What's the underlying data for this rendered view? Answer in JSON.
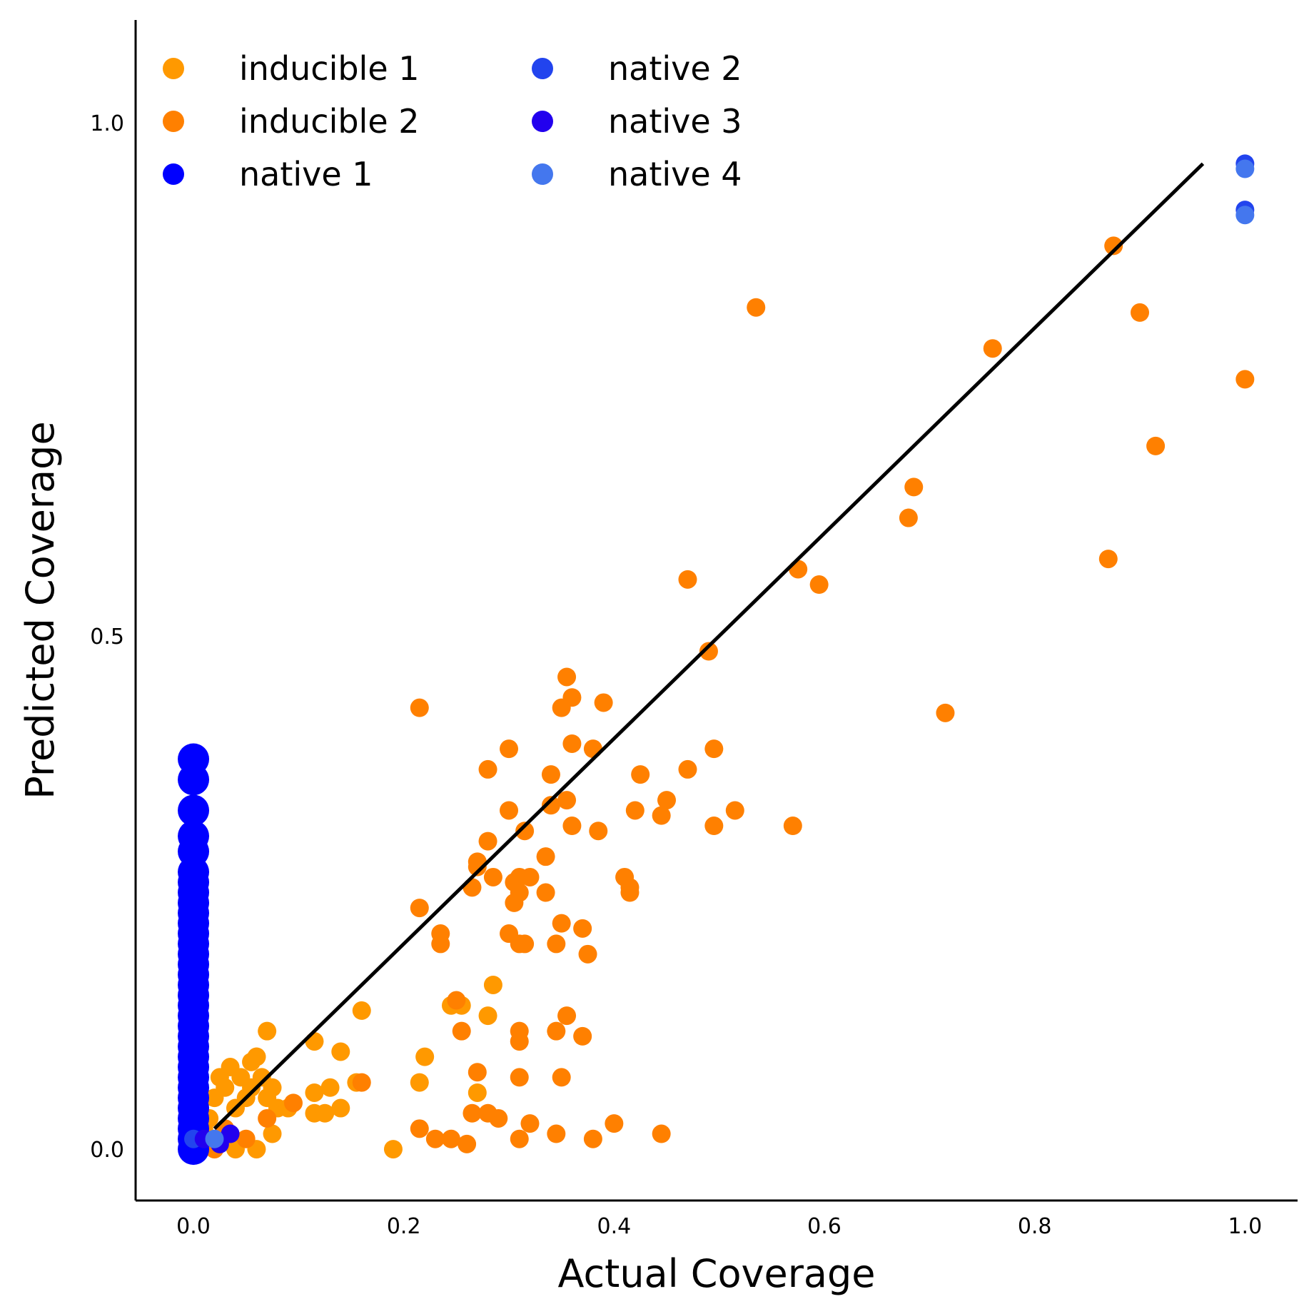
{
  "chart_data": {
    "type": "scatter",
    "xlabel": "Actual Coverage",
    "ylabel": "Predicted Coverage",
    "xlim": [
      -0.055,
      1.05
    ],
    "ylim": [
      -0.05,
      1.1
    ],
    "xticks": [
      0.0,
      0.2,
      0.4,
      0.6,
      0.8,
      1.0
    ],
    "xtick_labels": [
      "0.0",
      "0.2",
      "0.4",
      "0.6",
      "0.8",
      "1.0"
    ],
    "yticks": [
      0.0,
      0.5,
      1.0
    ],
    "ytick_labels": [
      "0.0",
      "0.5",
      "1.0"
    ],
    "grid": false,
    "legend": {
      "position": "top-left",
      "columns": 2
    },
    "fit_line": {
      "color": "#000000",
      "x": [
        0.02,
        0.96
      ],
      "y": [
        0.02,
        0.96
      ]
    },
    "series": [
      {
        "name": "inducible 1",
        "color": "#ff9900",
        "points": [
          [
            0.0,
            0.0
          ],
          [
            0.01,
            0.02
          ],
          [
            0.015,
            0.03
          ],
          [
            0.02,
            0.05
          ],
          [
            0.025,
            0.07
          ],
          [
            0.03,
            0.06
          ],
          [
            0.035,
            0.08
          ],
          [
            0.04,
            0.04
          ],
          [
            0.045,
            0.07
          ],
          [
            0.05,
            0.05
          ],
          [
            0.055,
            0.06
          ],
          [
            0.06,
            0.09
          ],
          [
            0.065,
            0.07
          ],
          [
            0.07,
            0.05
          ],
          [
            0.075,
            0.06
          ],
          [
            0.04,
            0.0
          ],
          [
            0.06,
            0.0
          ],
          [
            0.075,
            0.015
          ],
          [
            0.08,
            0.04
          ],
          [
            0.09,
            0.04
          ],
          [
            0.115,
            0.035
          ],
          [
            0.115,
            0.055
          ],
          [
            0.125,
            0.035
          ],
          [
            0.13,
            0.06
          ],
          [
            0.14,
            0.04
          ],
          [
            0.155,
            0.065
          ],
          [
            0.115,
            0.105
          ],
          [
            0.14,
            0.095
          ],
          [
            0.07,
            0.115
          ],
          [
            0.06,
            0.09
          ],
          [
            0.055,
            0.085
          ],
          [
            0.16,
            0.135
          ],
          [
            0.19,
            0.0
          ],
          [
            0.215,
            0.065
          ],
          [
            0.22,
            0.09
          ],
          [
            0.28,
            0.13
          ],
          [
            0.285,
            0.16
          ],
          [
            0.27,
            0.055
          ],
          [
            0.255,
            0.14
          ],
          [
            0.245,
            0.14
          ]
        ]
      },
      {
        "name": "inducible 2",
        "color": "#ff8000",
        "points": [
          [
            0.02,
            0.0
          ],
          [
            0.03,
            0.02
          ],
          [
            0.05,
            0.01
          ],
          [
            0.07,
            0.03
          ],
          [
            0.215,
            0.43
          ],
          [
            0.215,
            0.235
          ],
          [
            0.235,
            0.21
          ],
          [
            0.235,
            0.2
          ],
          [
            0.25,
            0.145
          ],
          [
            0.255,
            0.115
          ],
          [
            0.265,
            0.255
          ],
          [
            0.27,
            0.275
          ],
          [
            0.27,
            0.28
          ],
          [
            0.28,
            0.37
          ],
          [
            0.28,
            0.3
          ],
          [
            0.285,
            0.265
          ],
          [
            0.3,
            0.21
          ],
          [
            0.3,
            0.39
          ],
          [
            0.3,
            0.33
          ],
          [
            0.305,
            0.26
          ],
          [
            0.305,
            0.24
          ],
          [
            0.31,
            0.2
          ],
          [
            0.31,
            0.265
          ],
          [
            0.31,
            0.25
          ],
          [
            0.315,
            0.31
          ],
          [
            0.315,
            0.2
          ],
          [
            0.32,
            0.265
          ],
          [
            0.335,
            0.285
          ],
          [
            0.335,
            0.25
          ],
          [
            0.34,
            0.365
          ],
          [
            0.34,
            0.335
          ],
          [
            0.345,
            0.2
          ],
          [
            0.345,
            0.115
          ],
          [
            0.35,
            0.43
          ],
          [
            0.35,
            0.22
          ],
          [
            0.355,
            0.46
          ],
          [
            0.355,
            0.34
          ],
          [
            0.355,
            0.13
          ],
          [
            0.36,
            0.44
          ],
          [
            0.36,
            0.395
          ],
          [
            0.36,
            0.315
          ],
          [
            0.37,
            0.215
          ],
          [
            0.37,
            0.11
          ],
          [
            0.375,
            0.19
          ],
          [
            0.38,
            0.39
          ],
          [
            0.385,
            0.31
          ],
          [
            0.39,
            0.435
          ],
          [
            0.41,
            0.265
          ],
          [
            0.415,
            0.255
          ],
          [
            0.415,
            0.25
          ],
          [
            0.42,
            0.33
          ],
          [
            0.425,
            0.365
          ],
          [
            0.445,
            0.325
          ],
          [
            0.45,
            0.34
          ],
          [
            0.47,
            0.37
          ],
          [
            0.47,
            0.555
          ],
          [
            0.49,
            0.485
          ],
          [
            0.495,
            0.39
          ],
          [
            0.495,
            0.315
          ],
          [
            0.515,
            0.33
          ],
          [
            0.535,
            0.82
          ],
          [
            0.57,
            0.315
          ],
          [
            0.575,
            0.565
          ],
          [
            0.595,
            0.55
          ],
          [
            0.68,
            0.615
          ],
          [
            0.685,
            0.645
          ],
          [
            0.715,
            0.425
          ],
          [
            0.76,
            0.78
          ],
          [
            0.87,
            0.575
          ],
          [
            0.875,
            0.88
          ],
          [
            0.9,
            0.815
          ],
          [
            0.915,
            0.685
          ],
          [
            1.0,
            0.75
          ],
          [
            0.31,
            0.115
          ],
          [
            0.31,
            0.105
          ],
          [
            0.31,
            0.07
          ],
          [
            0.35,
            0.07
          ],
          [
            0.27,
            0.075
          ],
          [
            0.215,
            0.02
          ],
          [
            0.23,
            0.01
          ],
          [
            0.245,
            0.01
          ],
          [
            0.26,
            0.005
          ],
          [
            0.265,
            0.035
          ],
          [
            0.28,
            0.035
          ],
          [
            0.29,
            0.03
          ],
          [
            0.31,
            0.01
          ],
          [
            0.32,
            0.025
          ],
          [
            0.345,
            0.015
          ],
          [
            0.38,
            0.01
          ],
          [
            0.4,
            0.025
          ],
          [
            0.445,
            0.015
          ],
          [
            0.095,
            0.045
          ],
          [
            0.16,
            0.065
          ]
        ]
      },
      {
        "name": "native 1",
        "color": "#0000ff",
        "points": [
          [
            0.0,
            0.38
          ],
          [
            0.0,
            0.36
          ],
          [
            0.0,
            0.33
          ],
          [
            0.0,
            0.305
          ],
          [
            0.0,
            0.29
          ],
          [
            0.0,
            0.27
          ],
          [
            0.0,
            0.26
          ],
          [
            0.0,
            0.25
          ],
          [
            0.0,
            0.24
          ],
          [
            0.0,
            0.23
          ],
          [
            0.0,
            0.22
          ],
          [
            0.0,
            0.21
          ],
          [
            0.0,
            0.2
          ],
          [
            0.0,
            0.19
          ],
          [
            0.0,
            0.18
          ],
          [
            0.0,
            0.17
          ],
          [
            0.0,
            0.16
          ],
          [
            0.0,
            0.15
          ],
          [
            0.0,
            0.14
          ],
          [
            0.0,
            0.13
          ],
          [
            0.0,
            0.12
          ],
          [
            0.0,
            0.11
          ],
          [
            0.0,
            0.1
          ],
          [
            0.0,
            0.09
          ],
          [
            0.0,
            0.08
          ],
          [
            0.0,
            0.07
          ],
          [
            0.0,
            0.06
          ],
          [
            0.0,
            0.05
          ],
          [
            0.0,
            0.04
          ],
          [
            0.0,
            0.03
          ],
          [
            0.0,
            0.02
          ],
          [
            0.0,
            0.01
          ],
          [
            0.0,
            0.0
          ]
        ]
      },
      {
        "name": "native 2",
        "color": "#2244ee",
        "points": [
          [
            1.0,
            0.96
          ],
          [
            1.0,
            0.915
          ],
          [
            0.0,
            0.01
          ]
        ]
      },
      {
        "name": "native 3",
        "color": "#2200ee",
        "points": [
          [
            0.035,
            0.015
          ],
          [
            0.025,
            0.005
          ],
          [
            0.01,
            0.01
          ]
        ]
      },
      {
        "name": "native 4",
        "color": "#4477ee",
        "points": [
          [
            1.0,
            0.955
          ],
          [
            1.0,
            0.91
          ],
          [
            0.02,
            0.01
          ]
        ]
      }
    ]
  }
}
